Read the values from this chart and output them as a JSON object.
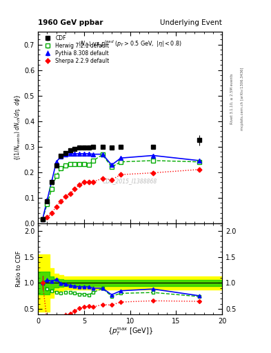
{
  "title_left": "1960 GeV ppbar",
  "title_right": "Underlying Event",
  "ylabel_main": "\\{(1/N_{events}) dN_{ch}/d\\eta, d\\phi\\}",
  "ylabel_ratio": "Ratio to CDF",
  "xlabel": "\\{p_T^{max} [GeV]\\}",
  "watermark": "CDF_2015_I1388868",
  "right_label1": "Rivet 3.1.10, ≥ 2.5M events",
  "right_label2": "mcplots.cern.ch [arXiv:1306.3436]",
  "cdf_x": [
    0.5,
    1.0,
    1.5,
    2.0,
    2.5,
    3.0,
    3.5,
    4.0,
    4.5,
    5.0,
    5.5,
    6.0,
    7.0,
    8.0,
    9.0,
    12.5,
    17.5
  ],
  "cdf_y": [
    0.015,
    0.085,
    0.16,
    0.225,
    0.265,
    0.275,
    0.285,
    0.29,
    0.295,
    0.295,
    0.295,
    0.3,
    0.3,
    0.295,
    0.3,
    0.3,
    0.325
  ],
  "cdf_yerr": [
    0.003,
    0.005,
    0.005,
    0.005,
    0.005,
    0.005,
    0.005,
    0.005,
    0.005,
    0.005,
    0.005,
    0.005,
    0.005,
    0.005,
    0.005,
    0.005,
    0.02
  ],
  "herwig_x": [
    0.5,
    1.0,
    1.5,
    2.0,
    2.5,
    3.0,
    3.5,
    4.0,
    4.5,
    5.0,
    5.5,
    6.0,
    7.0,
    8.0,
    9.0,
    12.5,
    17.5
  ],
  "herwig_y": [
    0.015,
    0.075,
    0.135,
    0.185,
    0.215,
    0.225,
    0.232,
    0.232,
    0.232,
    0.232,
    0.228,
    0.245,
    0.268,
    0.22,
    0.24,
    0.245,
    0.24
  ],
  "herwig_yerr": [
    0.002,
    0.003,
    0.003,
    0.003,
    0.003,
    0.003,
    0.003,
    0.003,
    0.003,
    0.003,
    0.003,
    0.003,
    0.005,
    0.005,
    0.005,
    0.005,
    0.008
  ],
  "pythia_x": [
    0.5,
    1.0,
    1.5,
    2.0,
    2.5,
    3.0,
    3.5,
    4.0,
    4.5,
    5.0,
    5.5,
    6.0,
    7.0,
    8.0,
    9.0,
    12.5,
    17.5
  ],
  "pythia_y": [
    0.015,
    0.09,
    0.165,
    0.24,
    0.262,
    0.268,
    0.272,
    0.272,
    0.272,
    0.272,
    0.272,
    0.27,
    0.27,
    0.228,
    0.255,
    0.265,
    0.245
  ],
  "pythia_yerr": [
    0.002,
    0.003,
    0.003,
    0.003,
    0.003,
    0.003,
    0.003,
    0.003,
    0.003,
    0.003,
    0.003,
    0.003,
    0.005,
    0.005,
    0.005,
    0.005,
    0.008
  ],
  "sherpa_x": [
    0.5,
    1.0,
    1.5,
    2.0,
    2.5,
    3.0,
    3.5,
    4.0,
    4.5,
    5.0,
    5.5,
    6.0,
    7.0,
    8.0,
    9.0,
    12.5,
    17.5
  ],
  "sherpa_y": [
    0.015,
    0.022,
    0.04,
    0.065,
    0.085,
    0.105,
    0.115,
    0.135,
    0.15,
    0.16,
    0.162,
    0.162,
    0.175,
    0.17,
    0.19,
    0.197,
    0.21
  ],
  "sherpa_yerr": [
    0.002,
    0.003,
    0.003,
    0.003,
    0.003,
    0.003,
    0.003,
    0.003,
    0.003,
    0.003,
    0.003,
    0.003,
    0.004,
    0.004,
    0.004,
    0.004,
    0.008
  ],
  "band_x": [
    0.0,
    0.75,
    1.25,
    1.75,
    2.25,
    2.75,
    3.25,
    3.75,
    4.25,
    4.75,
    5.25,
    5.75,
    6.5,
    7.5,
    8.5,
    10.75,
    15.0,
    20.0
  ],
  "band_lo_yellow": [
    0.45,
    0.45,
    0.72,
    0.82,
    0.85,
    0.87,
    0.87,
    0.87,
    0.87,
    0.87,
    0.87,
    0.87,
    0.87,
    0.87,
    0.87,
    0.87,
    0.87,
    0.87
  ],
  "band_hi_yellow": [
    1.55,
    1.55,
    1.28,
    1.18,
    1.15,
    1.13,
    1.13,
    1.13,
    1.13,
    1.13,
    1.13,
    1.13,
    1.13,
    1.13,
    1.13,
    1.13,
    1.13,
    1.13
  ],
  "band_lo_green": [
    0.78,
    0.78,
    0.87,
    0.91,
    0.93,
    0.94,
    0.94,
    0.94,
    0.94,
    0.94,
    0.94,
    0.94,
    0.94,
    0.94,
    0.94,
    0.94,
    0.94,
    0.94
  ],
  "band_hi_green": [
    1.22,
    1.22,
    1.13,
    1.09,
    1.07,
    1.06,
    1.06,
    1.06,
    1.06,
    1.06,
    1.06,
    1.06,
    1.06,
    1.06,
    1.06,
    1.06,
    1.06,
    1.06
  ],
  "color_cdf": "#000000",
  "color_herwig": "#00aa00",
  "color_pythia": "#0000ff",
  "color_sherpa": "#ff0000",
  "color_band_yellow": "#ffff00",
  "color_band_green": "#00cc00",
  "xlim": [
    0,
    20
  ],
  "ylim_main": [
    0.0,
    0.75
  ],
  "ylim_ratio": [
    0.4,
    2.15
  ],
  "yticks_main": [
    0.0,
    0.1,
    0.2,
    0.3,
    0.4,
    0.5,
    0.6,
    0.7
  ],
  "yticks_ratio": [
    0.5,
    1.0,
    1.5,
    2.0
  ],
  "xticks": [
    0,
    5,
    10,
    15,
    20
  ]
}
